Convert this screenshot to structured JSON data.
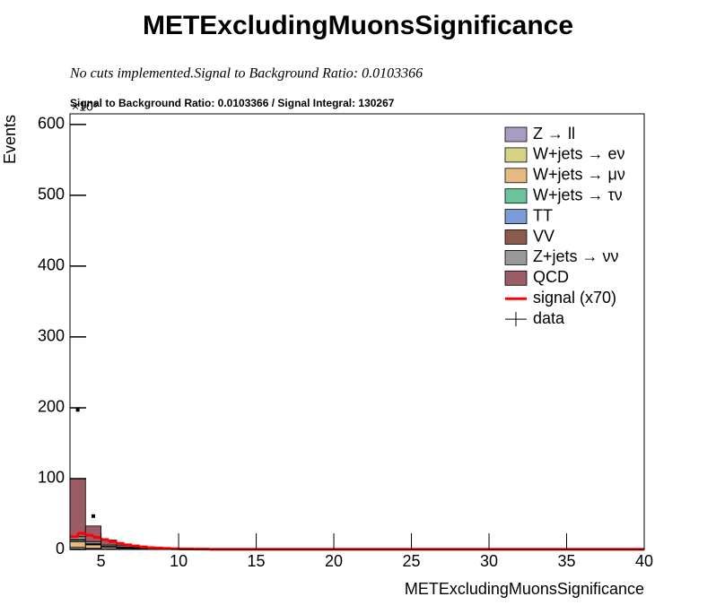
{
  "chart_data": {
    "type": "histogram",
    "title": "METExcludingMuonsSignificance",
    "subtitle": "No cuts implemented.Signal to Background Ratio: 0.0103366",
    "pad_title": "Signal to Background Ratio: 0.0103366 / Signal Integral: 130267",
    "y_multiplier": "×10³",
    "x_label": "METExcludingMuonsSignificance",
    "y_label": "Events",
    "xlim": [
      3,
      40
    ],
    "ylim": [
      0,
      615
    ],
    "xticks": [
      5,
      10,
      15,
      20,
      25,
      30,
      35,
      40
    ],
    "yticks": [
      0,
      100,
      200,
      300,
      400,
      500,
      600
    ],
    "stacked": true,
    "bins": [
      3,
      4,
      5,
      6,
      7,
      8,
      10,
      40
    ],
    "series": [
      {
        "name": "Z → ll",
        "color": "#a99cc2",
        "values": [
          1,
          0.5,
          0.3,
          0.2,
          0.1,
          0.05,
          0.01
        ]
      },
      {
        "name": "W+jets → eν",
        "color": "#d5d384",
        "values": [
          2,
          1,
          0.5,
          0.3,
          0.2,
          0.1,
          0.01
        ]
      },
      {
        "name": "W+jets → μν",
        "color": "#e6ba84",
        "values": [
          8,
          5,
          2.5,
          1.2,
          0.6,
          0.3,
          0.02
        ]
      },
      {
        "name": "W+jets → τν",
        "color": "#6cc49c",
        "values": [
          2,
          1,
          0.5,
          0.3,
          0.2,
          0.1,
          0.01
        ]
      },
      {
        "name": "TT",
        "color": "#7b9bd9",
        "values": [
          0.5,
          0.3,
          0.2,
          0.1,
          0.1,
          0.05,
          0.01
        ]
      },
      {
        "name": "VV",
        "color": "#8a5b4b",
        "values": [
          0.5,
          0.3,
          0.2,
          0.1,
          0.1,
          0.05,
          0.01
        ]
      },
      {
        "name": "Z+jets → νν",
        "color": "#999999",
        "values": [
          4,
          3,
          2,
          1,
          0.6,
          0.3,
          0.02
        ]
      },
      {
        "name": "QCD",
        "color": "#9b5c66",
        "values": [
          82,
          22,
          7,
          3,
          1,
          0.4,
          0.02
        ]
      }
    ],
    "signal": {
      "name": "signal (x70)",
      "color": "#ff0000",
      "bins": [
        3,
        3.5,
        4,
        4.5,
        5,
        5.5,
        6,
        6.5,
        7,
        7.5,
        8,
        8.5,
        9,
        9.5,
        10,
        11,
        12,
        40
      ],
      "values": [
        18,
        23,
        20,
        17,
        14,
        11,
        8.5,
        6.5,
        5,
        3.5,
        2.5,
        2,
        1.5,
        1,
        0.7,
        0.4,
        0.1
      ]
    },
    "data": {
      "name": "data",
      "color": "#000000",
      "x": [
        3.5,
        4.5
      ],
      "values": [
        197,
        47
      ]
    }
  }
}
